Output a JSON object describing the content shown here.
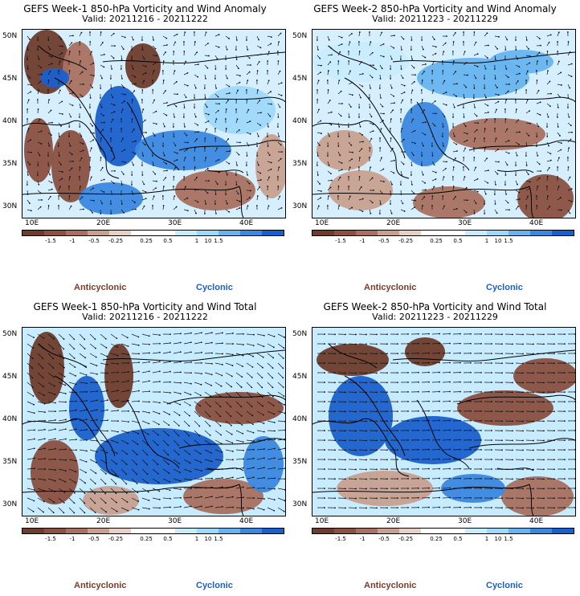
{
  "panels": [
    {
      "title": "GEFS Week-1 850-hPa Vorticity and Wind Anomaly",
      "valid": "Valid: 20211216 - 20211222",
      "kind": "anomaly-w1"
    },
    {
      "title": "GEFS Week-2 850-hPa Vorticity and Wind Anomaly",
      "valid": "Valid: 20211223 - 20211229",
      "kind": "anomaly-w2"
    },
    {
      "title": "GEFS Week-1 850-hPa Vorticity and Wind Total",
      "valid": "Valid: 20211216 - 20211222",
      "kind": "total-w1"
    },
    {
      "title": "GEFS Week-2 850-hPa Vorticity and Wind Total",
      "valid": "Valid: 20211223 - 20211229",
      "kind": "total-w2"
    }
  ],
  "axes": {
    "lat_labels": [
      "50N",
      "45N",
      "40N",
      "35N",
      "30N"
    ],
    "lon_labels": [
      "10E",
      "20E",
      "30E",
      "40E"
    ]
  },
  "colorbar": {
    "labels": [
      "-1.5",
      "-1",
      "-0.5",
      "-0.25",
      "0.25",
      "0.5",
      "1",
      "1.5"
    ],
    "scale_mark": "10",
    "colors": [
      "#6e3c2c",
      "#8a5040",
      "#a87060",
      "#c8a090",
      "#e6d0c4",
      "#ffffff",
      "#ffffff",
      "#c8ecff",
      "#9ed8fa",
      "#68b4f0",
      "#3b88e0",
      "#1a60cc"
    ]
  },
  "legend": {
    "anticyclonic": "Anticyclonic",
    "cyclonic": "Cyclonic",
    "anticyclonic_color": "#7b3b2a",
    "cyclonic_color": "#1a5fc8"
  }
}
